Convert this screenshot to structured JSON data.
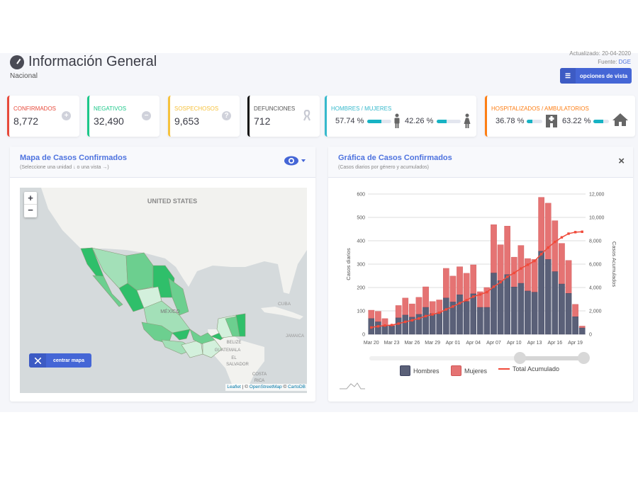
{
  "header": {
    "title": "Información General",
    "subtitle": "Nacional",
    "updated": "Actualizado: 20-04-2020",
    "source_label": "Fuente:",
    "source_link": "DGE",
    "options_button": "opciones de vista",
    "icon": "dashboard-gauge-icon"
  },
  "cards": [
    {
      "label": "CONFIRMADOS",
      "value": "8,772",
      "color": "#e74a3b",
      "icon": "plus-circle-icon"
    },
    {
      "label": "NEGATIVOS",
      "value": "32,490",
      "color": "#1cc88a",
      "icon": "minus-circle-icon"
    },
    {
      "label": "SOSPECHOSOS",
      "value": "9,653",
      "color": "#f6c23e",
      "icon": "question-circle-icon"
    },
    {
      "label": "DEFUNCIONES",
      "value": "712",
      "color": "#111111",
      "icon": "ribbon-icon"
    }
  ],
  "gender": {
    "label": "HOMBRES / MUJERES",
    "men": "57.74 %",
    "women": "42.26 %",
    "men_fraction": 0.5774,
    "women_fraction": 0.4226,
    "color": "#36b9cc"
  },
  "hosp": {
    "label": "HOSPITALIZADOS / AMBULATORIOS",
    "hosp": "36.78 %",
    "amb": "63.22 %",
    "hosp_fraction": 0.3678,
    "amb_fraction": 0.6322,
    "color": "#fd7e14"
  },
  "map_panel": {
    "title": "Mapa de Casos Confirmados",
    "subtitle": "(Seleccione una unidad ↓ o una vista →)",
    "zoom_in": "+",
    "zoom_out": "−",
    "center_button": "centrar mapa",
    "labels": {
      "us": "UNITED STATES",
      "mexico": "MÉXICO",
      "cuba": "CUBA",
      "jamaica": "JAMAICA",
      "belize": "BELIZE",
      "guatemala": "GUATEMALA",
      "el": "EL",
      "salvador": "SALVADOR",
      "costa": "COSTA",
      "rica": "RICA"
    },
    "attribution": {
      "leaflet": "Leaflet",
      "sep": " | © ",
      "osm": "OpenStreetMap",
      "sep2": " © ",
      "carto": "CartoDB"
    }
  },
  "chart_panel": {
    "title": "Gráfica de Casos Confirmados",
    "subtitle": "(Casos diarios por género y acumulados)",
    "close": "×"
  },
  "chart_data": {
    "type": "bar",
    "stacked": true,
    "categories": [
      "Mar 20",
      "Mar 21",
      "Mar 22",
      "Mar 23",
      "Mar 24",
      "Mar 25",
      "Mar 26",
      "Mar 27",
      "Mar 28",
      "Mar 29",
      "Mar 30",
      "Mar 31",
      "Apr 01",
      "Apr 02",
      "Apr 03",
      "Apr 04",
      "Apr 05",
      "Apr 06",
      "Apr 07",
      "Apr 08",
      "Apr 09",
      "Apr 10",
      "Apr 11",
      "Apr 12",
      "Apr 13",
      "Apr 14",
      "Apr 15",
      "Apr 16",
      "Apr 17",
      "Apr 18",
      "Apr 19",
      "Apr 20"
    ],
    "tick_labels": [
      "Mar 20",
      "Mar 23",
      "Mar 26",
      "Mar 29",
      "Apr 01",
      "Apr 04",
      "Apr 07",
      "Apr 10",
      "Apr 13",
      "Apr 16",
      "Apr 19"
    ],
    "series": [
      {
        "name": "Hombres",
        "type": "bar",
        "color": "#5a6078",
        "values": [
          67,
          53,
          35,
          35,
          70,
          82,
          73,
          85,
          115,
          88,
          92,
          155,
          138,
          169,
          140,
          173,
          115,
          115,
          262,
          229,
          255,
          202,
          218,
          185,
          180,
          355,
          320,
          268,
          215,
          175,
          75,
          27
        ]
      },
      {
        "name": "Mujeres",
        "type": "bar",
        "color": "#e57373",
        "values": [
          36,
          45,
          32,
          5,
          53,
          73,
          57,
          73,
          88,
          52,
          55,
          127,
          111,
          120,
          121,
          124,
          67,
          85,
          207,
          154,
          208,
          128,
          162,
          139,
          140,
          231,
          241,
          218,
          174,
          141,
          53,
          8
        ]
      },
      {
        "name": "Total Acumulado",
        "type": "line",
        "axis": "right",
        "color": "#f04a3a",
        "values": [
          581,
          679,
          746,
          786,
          909,
          1064,
          1194,
          1352,
          1555,
          1695,
          1842,
          2124,
          2373,
          2662,
          2923,
          3220,
          3402,
          3602,
          4071,
          4454,
          4917,
          5247,
          5627,
          5951,
          6271,
          6857,
          7418,
          7904,
          8293,
          8609,
          8737,
          8772
        ]
      }
    ],
    "ylabel": "Casos diarios",
    "ylim": [
      0,
      600
    ],
    "yticks": [
      "0",
      "100",
      "200",
      "300",
      "400",
      "500",
      "600"
    ],
    "y2label": "Casos Acumulados",
    "y2lim": [
      0,
      12000
    ],
    "y2ticks": [
      "0",
      "2,000",
      "4,000",
      "6,000",
      "8,000",
      "10,000",
      "12,000"
    ],
    "grid": true,
    "legend": "bottom"
  }
}
